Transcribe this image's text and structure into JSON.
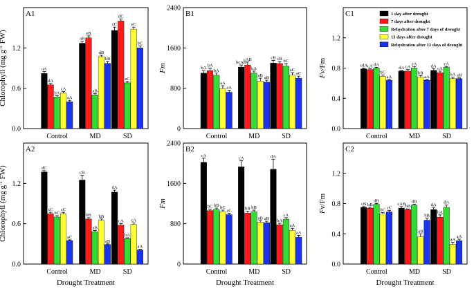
{
  "figure": {
    "colors": {
      "1 day after drought": "#000000",
      "7 days after drought": "#ff1a1a",
      "Rehydration after 7 days of drought": "#33dd33",
      "13 days after drought": "#ffff33",
      "Rehydration after 13 days of drought": "#1a33ee"
    },
    "xlabel": "Drought Treatment"
  },
  "chart_data": [
    {
      "id": "A1",
      "panel_label": "A1",
      "type": "bar",
      "categories": [
        "Control",
        "MD",
        "SD"
      ],
      "ylabel": "Chlorophyll (mg g",
      "ylabel_sup": "-1",
      "ylabel_tail": " FW)",
      "ylim": [
        0,
        1.8
      ],
      "yticks": [
        "0.0",
        "0.6",
        "1.2"
      ],
      "ytick_values": [
        0,
        0.6,
        1.2
      ],
      "xlabel": "",
      "series": [
        {
          "name": "1 day after drought",
          "values": [
            0.82,
            1.27,
            1.46
          ],
          "errors": [
            0.03,
            0.03,
            0.05
          ],
          "labels": [
            "aA",
            "aB",
            "cC"
          ]
        },
        {
          "name": "7 days after drought",
          "values": [
            0.65,
            1.35,
            1.6
          ],
          "errors": [
            0.02,
            0.03,
            0.03
          ],
          "labels": [
            "dA",
            "eB",
            "dC"
          ]
        },
        {
          "name": "Rehydration after 7 days of drought",
          "values": [
            0.47,
            0.5,
            0.68
          ],
          "errors": [
            0.02,
            0.02,
            0.02
          ],
          "labels": [
            "bA",
            "aB",
            "aC"
          ]
        },
        {
          "name": "13 days after drought",
          "values": [
            0.53,
            1.07,
            1.48
          ],
          "errors": [
            0.02,
            0.02,
            0.03
          ],
          "labels": [
            "cA",
            "dB",
            "eC"
          ]
        },
        {
          "name": "Rehydration after 13 days of drought",
          "values": [
            0.4,
            0.97,
            1.2
          ],
          "errors": [
            0.02,
            0.03,
            0.03
          ],
          "labels": [
            "aA",
            "bB",
            "bC"
          ]
        }
      ]
    },
    {
      "id": "B1",
      "panel_label": "B1",
      "type": "bar",
      "categories": [
        "Control",
        "MD",
        "SD"
      ],
      "ylabel": "Fm",
      "ylim": [
        0,
        2400
      ],
      "yticks": [
        "0",
        "800",
        "1600",
        "2400"
      ],
      "ytick_values": [
        0,
        800,
        1600,
        2400
      ],
      "xlabel": "",
      "series": [
        {
          "name": "1 day after drought",
          "values": [
            1100,
            1220,
            1300
          ],
          "errors": [
            50,
            40,
            50
          ],
          "labels": [
            "bA",
            "bcAB",
            "cB"
          ]
        },
        {
          "name": "7 days after drought",
          "values": [
            1150,
            1260,
            1290
          ],
          "errors": [
            50,
            60,
            40
          ],
          "labels": [
            "bA",
            "cAB",
            "cB"
          ]
        },
        {
          "name": "Rehydration after 7 days of drought",
          "values": [
            1060,
            1100,
            1240
          ],
          "errors": [
            40,
            40,
            50
          ],
          "labels": [
            "bA",
            "bA",
            "bC"
          ]
        },
        {
          "name": "13 days after drought",
          "values": [
            790,
            940,
            1060
          ],
          "errors": [
            60,
            60,
            50
          ],
          "labels": [
            "aA",
            "aB",
            "aC"
          ]
        },
        {
          "name": "Rehydration after 13 days of drought",
          "values": [
            720,
            920,
            1000
          ],
          "errors": [
            40,
            40,
            40
          ],
          "labels": [
            "aA",
            "aB",
            "aC"
          ]
        }
      ]
    },
    {
      "id": "C1",
      "panel_label": "C1",
      "type": "bar",
      "categories": [
        "Control",
        "MD",
        "SD"
      ],
      "ylabel": "Fv/Fm",
      "ylim": [
        0,
        1.6
      ],
      "yticks": [
        "0.0",
        "0.4",
        "0.8",
        "1.2"
      ],
      "ytick_values": [
        0,
        0.4,
        0.8,
        1.2
      ],
      "xlabel": "",
      "series": [
        {
          "name": "1 day after drought",
          "values": [
            0.79,
            0.76,
            0.77
          ],
          "errors": [
            0.01,
            0.01,
            0.02
          ],
          "labels": [
            "cdA",
            "dA",
            "dA"
          ]
        },
        {
          "name": "7 days after drought",
          "values": [
            0.78,
            0.76,
            0.74
          ],
          "errors": [
            0.01,
            0.02,
            0.02
          ],
          "labels": [
            "cA",
            "cA",
            "cA"
          ]
        },
        {
          "name": "Rehydration after 7 days of drought",
          "values": [
            0.8,
            0.8,
            0.81
          ],
          "errors": [
            0.01,
            0.02,
            0.01
          ],
          "labels": [
            "dA",
            "eA",
            "eA"
          ]
        },
        {
          "name": "13 days after drought",
          "values": [
            0.69,
            0.68,
            0.66
          ],
          "errors": [
            0.02,
            0.02,
            0.02
          ],
          "labels": [
            "bC",
            "bB",
            "bA"
          ]
        },
        {
          "name": "Rehydration after 13 days of drought",
          "values": [
            0.64,
            0.64,
            0.66
          ],
          "errors": [
            0.01,
            0.01,
            0.01
          ],
          "labels": [
            "aA",
            "aA",
            "aB"
          ]
        }
      ]
    },
    {
      "id": "A2",
      "panel_label": "A2",
      "type": "bar",
      "categories": [
        "Control",
        "MD",
        "SD"
      ],
      "ylabel": "Chlorophyll (mg g",
      "ylabel_sup": "-1",
      "ylabel_tail": " FW)",
      "ylim": [
        0,
        1.8
      ],
      "yticks": [
        "0.0",
        "0.6",
        "1.2"
      ],
      "ytick_values": [
        0,
        0.6,
        1.2
      ],
      "xlabel": "Drought Treatment",
      "series": [
        {
          "name": "1 day after drought",
          "values": [
            1.37,
            1.25,
            1.07
          ],
          "errors": [
            0.02,
            0.07,
            0.03
          ],
          "labels": [
            "dC",
            "cB",
            "dA"
          ]
        },
        {
          "name": "7 days after drought",
          "values": [
            0.75,
            0.67,
            0.58
          ],
          "errors": [
            0.02,
            0.02,
            0.02
          ],
          "labels": [
            "cC",
            "bB",
            "cA"
          ]
        },
        {
          "name": "Rehydration after 7 days of drought",
          "values": [
            0.7,
            0.48,
            0.38
          ],
          "errors": [
            0.02,
            0.02,
            0.01
          ],
          "labels": [
            "bC",
            "aB",
            "bA"
          ]
        },
        {
          "name": "13 days after drought",
          "values": [
            0.75,
            0.65,
            0.59
          ],
          "errors": [
            0.02,
            0.02,
            0.02
          ],
          "labels": [
            "cC",
            "bB",
            "cA"
          ]
        },
        {
          "name": "Rehydration after 13 days of drought",
          "values": [
            0.35,
            0.29,
            0.21
          ],
          "errors": [
            0.01,
            0.01,
            0.01
          ],
          "labels": [
            "aC",
            "aB",
            "aA"
          ]
        }
      ]
    },
    {
      "id": "B2",
      "panel_label": "B2",
      "type": "bar",
      "categories": [
        "Control",
        "MD",
        "SD"
      ],
      "ylabel": "Fm",
      "ylim": [
        0,
        2400
      ],
      "yticks": [
        "0",
        "800",
        "1600",
        "2400"
      ],
      "ytick_values": [
        0,
        800,
        1600,
        2400
      ],
      "xlabel": "Drought Treatment",
      "series": [
        {
          "name": "1 day after drought",
          "values": [
            2020,
            1930,
            1880
          ],
          "errors": [
            80,
            120,
            200
          ],
          "labels": [
            "cA",
            "cA",
            "dA"
          ]
        },
        {
          "name": "7 days after drought",
          "values": [
            1060,
            1010,
            780
          ],
          "errors": [
            30,
            40,
            30
          ],
          "labels": [
            "bC",
            "bB",
            "bA"
          ]
        },
        {
          "name": "Rehydration after 7 days of drought",
          "values": [
            1080,
            1040,
            890
          ],
          "errors": [
            30,
            30,
            30
          ],
          "labels": [
            "bB",
            "bB",
            "cA"
          ]
        },
        {
          "name": "13 days after drought",
          "values": [
            1040,
            830,
            670
          ],
          "errors": [
            30,
            30,
            40
          ],
          "labels": [
            "bC",
            "aB",
            "aA"
          ]
        },
        {
          "name": "Rehydration after 13 days of drought",
          "values": [
            980,
            820,
            530
          ],
          "errors": [
            30,
            30,
            40
          ],
          "labels": [
            "aC",
            "aB",
            "aA"
          ]
        }
      ]
    },
    {
      "id": "C2",
      "panel_label": "C2",
      "type": "bar",
      "categories": [
        "Control",
        "MD",
        "SD"
      ],
      "ylabel": "Fv/Fm",
      "ylim": [
        0,
        1.6
      ],
      "yticks": [
        "0.0",
        "0.4",
        "0.8",
        "1.2"
      ],
      "ytick_values": [
        0,
        0.4,
        0.8,
        1.2
      ],
      "xlabel": "Drought Treatment",
      "series": [
        {
          "name": "1 day after drought",
          "values": [
            0.75,
            0.74,
            0.72
          ],
          "errors": [
            0.01,
            0.02,
            0.03
          ],
          "labels": [
            "cB",
            "cAB",
            "dA"
          ]
        },
        {
          "name": "7 days after drought",
          "values": [
            0.74,
            0.72,
            0.62
          ],
          "errors": [
            0.01,
            0.01,
            0.03
          ],
          "labels": [
            "bB",
            "bB",
            "bA"
          ]
        },
        {
          "name": "Rehydration after 7 days of drought",
          "values": [
            0.79,
            0.78,
            0.75
          ],
          "errors": [
            0.01,
            0.01,
            0.03
          ],
          "labels": [
            "dB",
            "dB",
            "dA"
          ]
        },
        {
          "name": "13 days after drought",
          "values": [
            0.66,
            0.36,
            0.26
          ],
          "errors": [
            0.02,
            0.04,
            0.03
          ],
          "labels": [
            "bC",
            "aB",
            "aA"
          ]
        },
        {
          "name": "Rehydration after 13 days of drought",
          "values": [
            0.69,
            0.58,
            0.31
          ],
          "errors": [
            0.02,
            0.03,
            0.02
          ],
          "labels": [
            "cC",
            "bB",
            "aA"
          ]
        }
      ]
    }
  ]
}
